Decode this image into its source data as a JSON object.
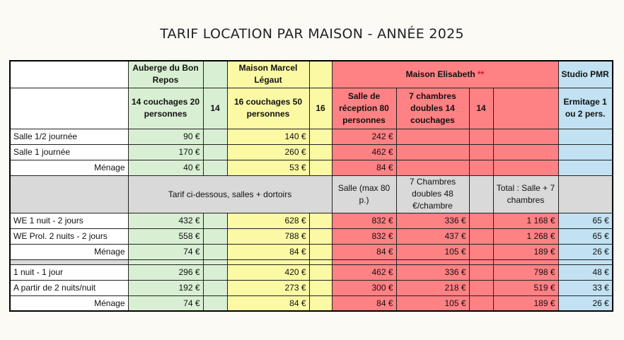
{
  "title": "TARIF LOCATION PAR MAISON - ANNÉE 2025",
  "houses": {
    "auberge": "Auberge du Bon Repos",
    "marcel": "Maison  Marcel Légaut",
    "elisabeth": "Maison Elisabeth",
    "elisabeth_mark": "**",
    "studio": "Studio  PMR"
  },
  "capacity": {
    "auberge": "14 couchages 20 personnes",
    "auberge_n": "14",
    "marcel": "16 couchages 50 personnes",
    "marcel_n": "16",
    "salle": "Salle de réception 80 personnes",
    "chambres": "7 chambres doubles 14 couchages",
    "elisabeth_n": "14",
    "studio": "Ermitage 1 ou 2 pers."
  },
  "salle_rows": [
    {
      "label": "Salle 1/2 journée",
      "auberge": "90 €",
      "marcel": "140 €",
      "salle": "242 €"
    },
    {
      "label": "Salle 1 journée",
      "auberge": "170 €",
      "marcel": "260 €",
      "salle": "462 €"
    },
    {
      "label": "Ménage",
      "auberge": "40 €",
      "marcel": "53 €",
      "salle": "84 €"
    }
  ],
  "dortoir_header": {
    "note": "Tarif ci-dessous, salles + dortoirs",
    "salle": "Salle (max 80 p.)",
    "chambres": "7 Chambres doubles 48 €/chambre",
    "total": "Total : Salle + 7 chambres"
  },
  "we_rows": [
    {
      "label": "WE 1 nuit - 2 jours",
      "auberge": "432 €",
      "marcel": "628 €",
      "salle": "832 €",
      "chambres": "336 €",
      "total": "1 168 €",
      "studio": "65 €"
    },
    {
      "label": "WE Prol. 2 nuits - 2 jours",
      "auberge": "558 €",
      "marcel": "788 €",
      "salle": "832 €",
      "chambres": "437 €",
      "total": "1 268 €",
      "studio": "65 €"
    },
    {
      "label": "Ménage",
      "auberge": "74 €",
      "marcel": "84 €",
      "salle": "84 €",
      "chambres": "105 €",
      "total": "189 €",
      "studio": "26 €"
    }
  ],
  "night_rows": [
    {
      "label": "1 nuit - 1 jour",
      "auberge": "296 €",
      "marcel": "420 €",
      "salle": "462 €",
      "chambres": "336 €",
      "total": "798 €",
      "studio": "48 €"
    },
    {
      "label": "A partir de 2 nuits/nuit",
      "auberge": "192 €",
      "marcel": "273 €",
      "salle": "300 €",
      "chambres": "218 €",
      "total": "519 €",
      "studio": "33 €"
    },
    {
      "label": "Ménage",
      "auberge": "74 €",
      "marcel": "84 €",
      "salle": "84 €",
      "chambres": "105 €",
      "total": "189 €",
      "studio": "26 €"
    }
  ]
}
